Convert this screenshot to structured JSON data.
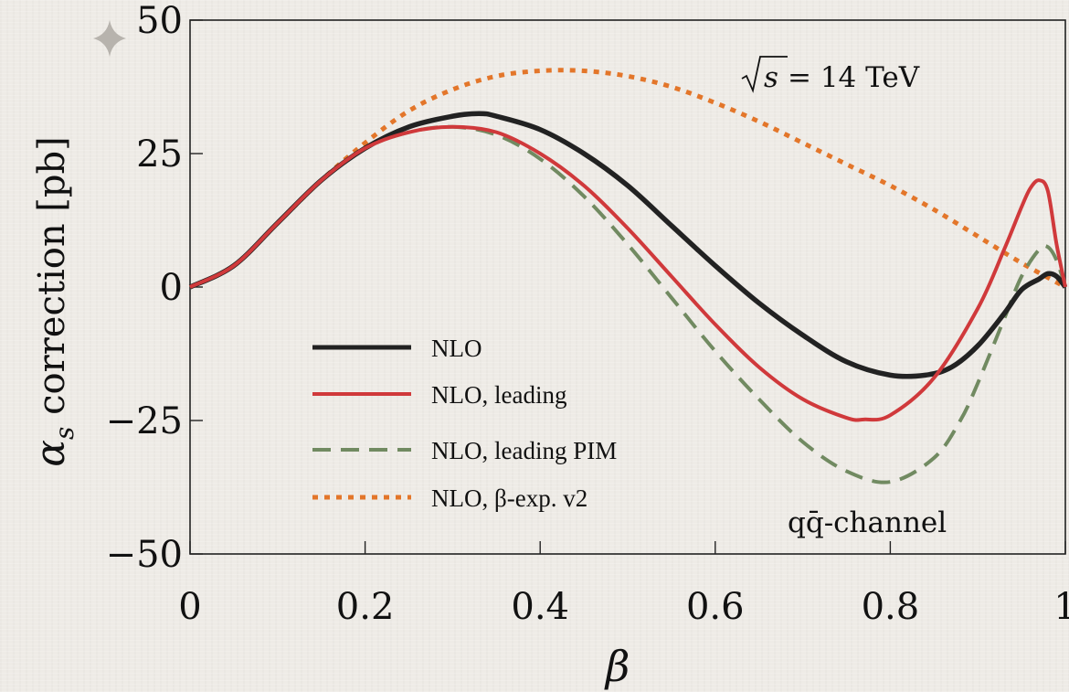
{
  "chart_data": {
    "type": "line",
    "xlabel": "β",
    "ylabel_symbol": "α",
    "ylabel_subscript": "s",
    "ylabel_text": " correction [pb]",
    "xlim": [
      0,
      1
    ],
    "ylim": [
      -50,
      50
    ],
    "x_ticks": [
      "0",
      "0.2",
      "0.4",
      "0.6",
      "0.8",
      "1"
    ],
    "y_ticks": [
      "50",
      "25",
      "0",
      "−25",
      "−50"
    ],
    "annotation_energy_sqrt": "s",
    "annotation_energy_rest": " = 14 TeV",
    "annotation_channel": "qq̄-channel",
    "legend_position": "center-left",
    "series": [
      {
        "name": "NLO",
        "color": "#222222",
        "style": "solid",
        "x": [
          0,
          0.05,
          0.1,
          0.15,
          0.2,
          0.25,
          0.3,
          0.33,
          0.35,
          0.4,
          0.45,
          0.5,
          0.55,
          0.6,
          0.65,
          0.7,
          0.75,
          0.8,
          0.84,
          0.87,
          0.9,
          0.93,
          0.95,
          0.97,
          0.98,
          0.99,
          1.0
        ],
        "values": [
          0,
          4,
          12,
          20,
          26,
          30,
          32,
          32.5,
          32,
          29.5,
          25,
          19,
          11.5,
          4,
          -3,
          -9,
          -14,
          -16.5,
          -16.5,
          -15,
          -11,
          -5,
          -0.5,
          1.5,
          2.5,
          2,
          0
        ]
      },
      {
        "name": "NLO, leading",
        "color": "#d0393b",
        "style": "solid",
        "x": [
          0,
          0.05,
          0.1,
          0.15,
          0.2,
          0.25,
          0.3,
          0.35,
          0.4,
          0.45,
          0.5,
          0.55,
          0.6,
          0.65,
          0.7,
          0.75,
          0.77,
          0.8,
          0.85,
          0.9,
          0.93,
          0.95,
          0.96,
          0.97,
          0.98,
          0.99,
          1.0
        ],
        "values": [
          0,
          4,
          12,
          20,
          26,
          29,
          30,
          29,
          25,
          19,
          11,
          2,
          -7,
          -15,
          -21,
          -24.5,
          -24.8,
          -24,
          -17,
          -4,
          7,
          15,
          18.5,
          20,
          18,
          8,
          0
        ]
      },
      {
        "name": "NLO, leading PIM",
        "color": "#718a61",
        "style": "dashed",
        "x": [
          0,
          0.05,
          0.1,
          0.15,
          0.2,
          0.25,
          0.3,
          0.35,
          0.4,
          0.45,
          0.5,
          0.55,
          0.6,
          0.65,
          0.7,
          0.75,
          0.8,
          0.85,
          0.88,
          0.9,
          0.93,
          0.95,
          0.97,
          0.98,
          0.99,
          1.0
        ],
        "values": [
          0,
          4,
          12,
          20,
          26,
          29,
          30,
          28.5,
          24,
          17,
          8,
          -2,
          -12,
          -21,
          -29,
          -34.5,
          -36.5,
          -32,
          -25,
          -18,
          -6,
          2,
          7,
          7.5,
          5,
          0
        ]
      },
      {
        "name": "NLO, β-exp. v2",
        "color": "#e3762a",
        "style": "dotted",
        "x": [
          0,
          0.05,
          0.1,
          0.15,
          0.2,
          0.25,
          0.3,
          0.35,
          0.4,
          0.45,
          0.5,
          0.55,
          0.6,
          0.65,
          0.7,
          0.75,
          0.8,
          0.85,
          0.9,
          0.95,
          1.0
        ],
        "values": [
          0,
          4,
          12,
          20,
          27,
          33,
          37,
          39.5,
          40.5,
          40.5,
          39.5,
          37.5,
          34.5,
          31,
          27,
          23,
          19,
          14.5,
          9.5,
          4.5,
          0
        ]
      }
    ]
  }
}
